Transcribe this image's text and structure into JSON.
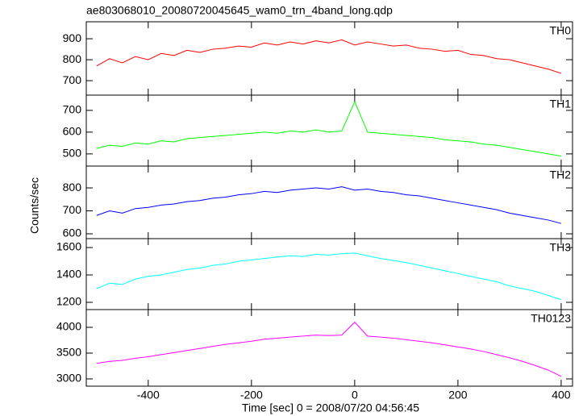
{
  "chart_data": {
    "type": "line",
    "title": "ae803068010_20080720045645_wam0_trn_4band_long.qdp",
    "xlabel": "Time [sec] 0 = 2008/07/20 04:56:45",
    "ylabel": "Counts/sec",
    "xlim": [
      -520,
      422
    ],
    "xticks": [
      -400,
      -200,
      0,
      200,
      400
    ],
    "x": [
      -500,
      -475,
      -450,
      -425,
      -400,
      -375,
      -350,
      -325,
      -300,
      -275,
      -250,
      -225,
      -200,
      -175,
      -150,
      -125,
      -100,
      -75,
      -50,
      -25,
      0,
      25,
      50,
      75,
      100,
      125,
      150,
      175,
      200,
      225,
      250,
      275,
      300,
      325,
      350,
      375,
      400
    ],
    "panels": [
      {
        "name": "TH0",
        "color": "#ff0000",
        "ylim": [
          631,
          981
        ],
        "yticks": [
          700,
          800,
          900
        ],
        "values": [
          770,
          805,
          785,
          815,
          800,
          830,
          820,
          845,
          835,
          850,
          855,
          865,
          860,
          880,
          870,
          885,
          875,
          890,
          880,
          895,
          870,
          885,
          875,
          865,
          870,
          855,
          850,
          840,
          845,
          825,
          820,
          805,
          800,
          785,
          770,
          755,
          735
        ]
      },
      {
        "name": "TH1",
        "color": "#00ff00",
        "ylim": [
          444,
          770
        ],
        "yticks": [
          500,
          600,
          700
        ],
        "values": [
          525,
          540,
          535,
          550,
          545,
          560,
          555,
          570,
          575,
          580,
          585,
          590,
          595,
          600,
          595,
          605,
          600,
          610,
          600,
          605,
          740,
          600,
          595,
          590,
          585,
          580,
          575,
          565,
          560,
          555,
          545,
          540,
          530,
          520,
          510,
          500,
          490
        ]
      },
      {
        "name": "TH2",
        "color": "#0000ff",
        "ylim": [
          579,
          895
        ],
        "yticks": [
          600,
          700,
          800
        ],
        "values": [
          680,
          700,
          690,
          710,
          715,
          725,
          730,
          740,
          745,
          755,
          760,
          770,
          775,
          785,
          780,
          790,
          795,
          800,
          795,
          805,
          790,
          795,
          785,
          780,
          770,
          765,
          755,
          745,
          735,
          725,
          715,
          705,
          690,
          680,
          670,
          660,
          645
        ]
      },
      {
        "name": "TH3",
        "color": "#00ffff",
        "ylim": [
          1147,
          1665
        ],
        "yticks": [
          1200,
          1400,
          1600
        ],
        "values": [
          1300,
          1340,
          1330,
          1370,
          1390,
          1400,
          1420,
          1440,
          1450,
          1470,
          1480,
          1500,
          1510,
          1520,
          1530,
          1540,
          1535,
          1550,
          1545,
          1555,
          1560,
          1540,
          1520,
          1505,
          1490,
          1470,
          1450,
          1430,
          1410,
          1390,
          1370,
          1350,
          1320,
          1300,
          1280,
          1250,
          1220
        ]
      },
      {
        "name": "TH0123",
        "color": "#ff00ff",
        "ylim": [
          2859,
          4344
        ],
        "yticks": [
          3000,
          3500,
          4000
        ],
        "values": [
          3300,
          3340,
          3360,
          3400,
          3430,
          3470,
          3510,
          3550,
          3590,
          3630,
          3670,
          3700,
          3730,
          3770,
          3790,
          3810,
          3830,
          3850,
          3840,
          3850,
          4100,
          3830,
          3810,
          3790,
          3760,
          3730,
          3700,
          3660,
          3620,
          3580,
          3530,
          3470,
          3410,
          3340,
          3260,
          3170,
          3050
        ]
      }
    ]
  }
}
